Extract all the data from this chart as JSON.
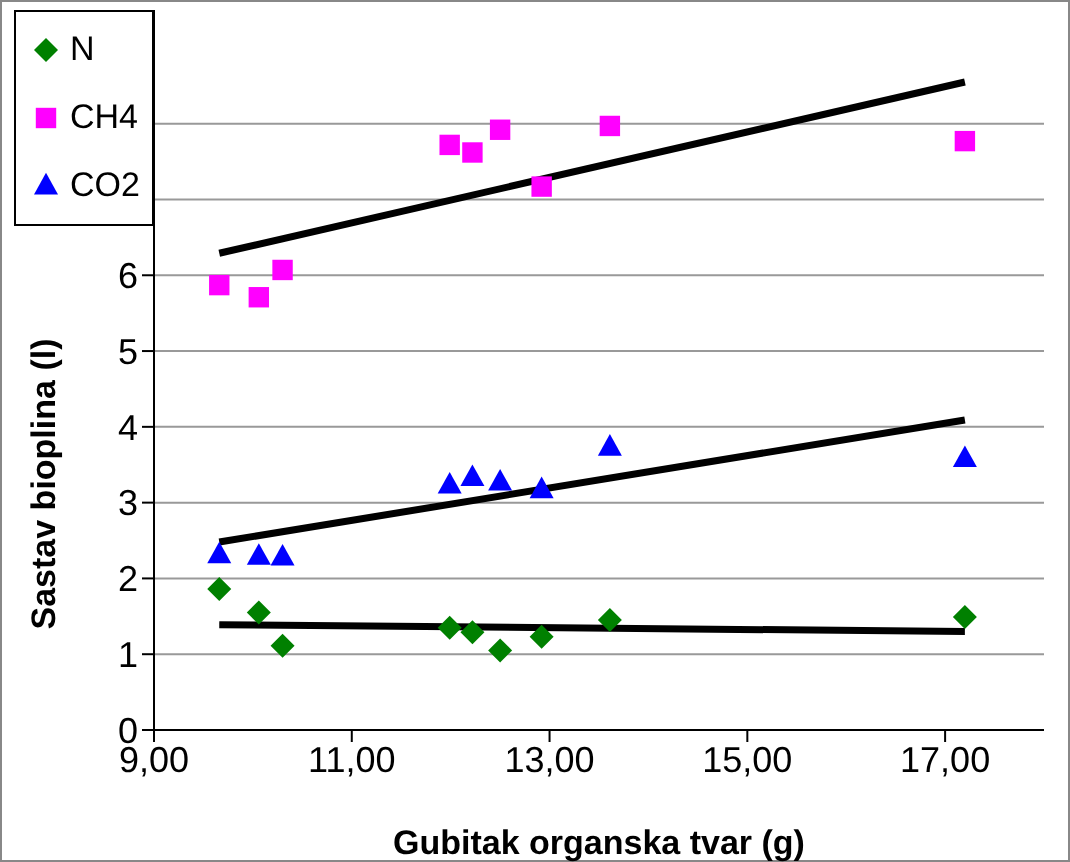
{
  "chart_data": {
    "type": "scatter",
    "xlabel": "Gubitak organska tvar (g)",
    "ylabel": "Sastav bioplina (l)",
    "xlim": [
      9,
      18
    ],
    "xticks": [
      {
        "value": 9,
        "label": "9,00"
      },
      {
        "value": 11,
        "label": "11,00"
      },
      {
        "value": 13,
        "label": "13,00"
      },
      {
        "value": 15,
        "label": "15,00"
      },
      {
        "value": 17,
        "label": "17,00"
      }
    ],
    "ylim": [
      0,
      9.5
    ],
    "yticks": [
      0,
      1,
      2,
      3,
      4,
      5,
      6,
      {
        "value": 7,
        "label": null
      },
      {
        "value": 8,
        "label": null
      }
    ],
    "grid": "y",
    "legend": "top left",
    "series": [
      {
        "name": "N",
        "type": "scatter",
        "marker": "diamond",
        "color": "#008000",
        "x": [
          9.66,
          10.06,
          10.3,
          11.99,
          12.22,
          12.5,
          12.92,
          13.61,
          17.2
        ],
        "values": [
          1.86,
          1.55,
          1.11,
          1.35,
          1.29,
          1.05,
          1.23,
          1.45,
          1.49
        ]
      },
      {
        "name": "CH4",
        "type": "scatter",
        "marker": "square",
        "color": "#ff00ff",
        "x": [
          9.66,
          10.06,
          10.3,
          11.99,
          12.22,
          12.5,
          12.92,
          13.61,
          17.2
        ],
        "values": [
          5.87,
          5.71,
          6.07,
          7.72,
          7.62,
          7.92,
          7.17,
          7.97,
          7.77
        ]
      },
      {
        "name": "CO2",
        "type": "scatter",
        "marker": "triangle",
        "color": "#0000ff",
        "x": [
          9.66,
          10.06,
          10.3,
          11.99,
          12.22,
          12.5,
          12.92,
          13.61,
          17.2
        ],
        "values": [
          2.31,
          2.29,
          2.28,
          3.23,
          3.33,
          3.27,
          3.17,
          3.73,
          3.58
        ]
      },
      {
        "type": "line",
        "color": "#000000",
        "x": [
          9.66,
          17.2
        ],
        "values": [
          6.29,
          8.55
        ]
      },
      {
        "type": "line",
        "color": "#000000",
        "x": [
          9.66,
          17.2
        ],
        "values": [
          2.48,
          4.09
        ]
      },
      {
        "type": "line",
        "color": "#000000",
        "x": [
          9.66,
          17.2
        ],
        "values": [
          1.39,
          1.3
        ]
      }
    ]
  }
}
